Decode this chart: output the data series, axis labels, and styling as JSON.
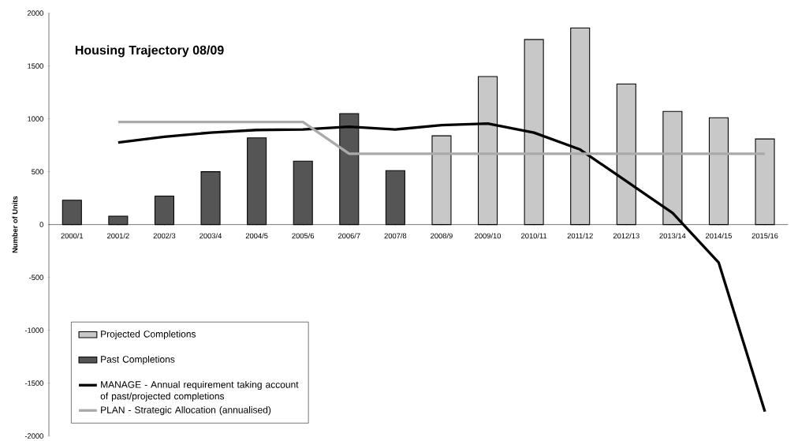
{
  "chart_data": {
    "type": "bar",
    "title": "Housing Trajectory 08/09",
    "ylabel": "Number of Units",
    "categories": [
      "2000/1",
      "2001/2",
      "2002/3",
      "2003/4",
      "2004/5",
      "2005/6",
      "2006/7",
      "2007/8",
      "2008/9",
      "2009/10",
      "2010/11",
      "2011/12",
      "2012/13",
      "2013/14",
      "2014/15",
      "2015/16"
    ],
    "series": [
      {
        "name": "Projected Completions",
        "color": "#c8c8c8",
        "values": [
          null,
          null,
          null,
          null,
          null,
          null,
          null,
          null,
          840,
          1400,
          1750,
          1860,
          1330,
          1070,
          1010,
          810
        ]
      },
      {
        "name": "Past Completions",
        "color": "#555555",
        "values": [
          230,
          80,
          270,
          500,
          820,
          600,
          1050,
          510,
          null,
          null,
          null,
          null,
          null,
          null,
          null,
          null
        ]
      },
      {
        "name": "MANAGE - Annual requirement taking account of past/projected completions",
        "type": "line",
        "color": "#000000",
        "values": [
          null,
          776,
          830,
          870,
          895,
          900,
          925,
          900,
          940,
          955,
          870,
          710,
          410,
          110,
          -360,
          -1770
        ]
      },
      {
        "name": "PLAN - Strategic Allocation (annualised)",
        "type": "line",
        "color": "#aaaaaa",
        "values": [
          null,
          970,
          970,
          970,
          970,
          970,
          670,
          670,
          670,
          670,
          670,
          670,
          670,
          670,
          670,
          670
        ]
      }
    ],
    "ylim": [
      -2000,
      2000
    ],
    "yticks": [
      -2000,
      -1500,
      -1000,
      -500,
      0,
      500,
      1000,
      1500,
      2000
    ],
    "legend": "bottom left"
  }
}
